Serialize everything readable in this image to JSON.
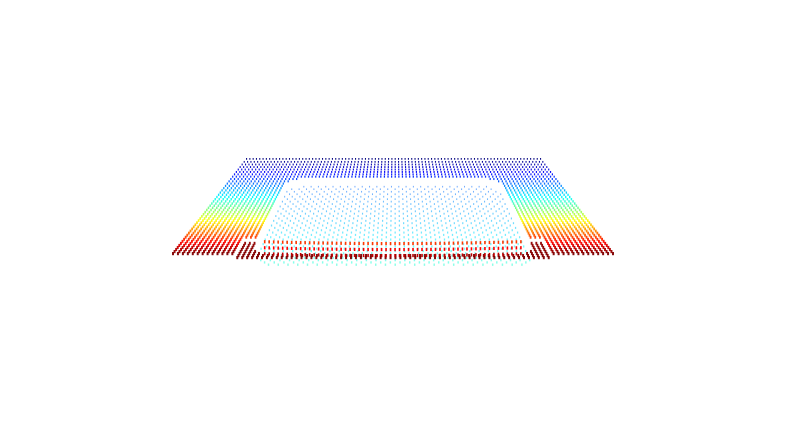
{
  "scene": {
    "background": "#ffffff",
    "object": "point-cloud-tray",
    "render_style": "colored-dots",
    "colormap": "jet",
    "colormap_stops": [
      "#00007f",
      "#0000ff",
      "#00ffff",
      "#7fff7f",
      "#ffff00",
      "#ff7f00",
      "#ff0000",
      "#7f0000"
    ],
    "grid": {
      "rows": 44,
      "cols": 90
    }
  }
}
